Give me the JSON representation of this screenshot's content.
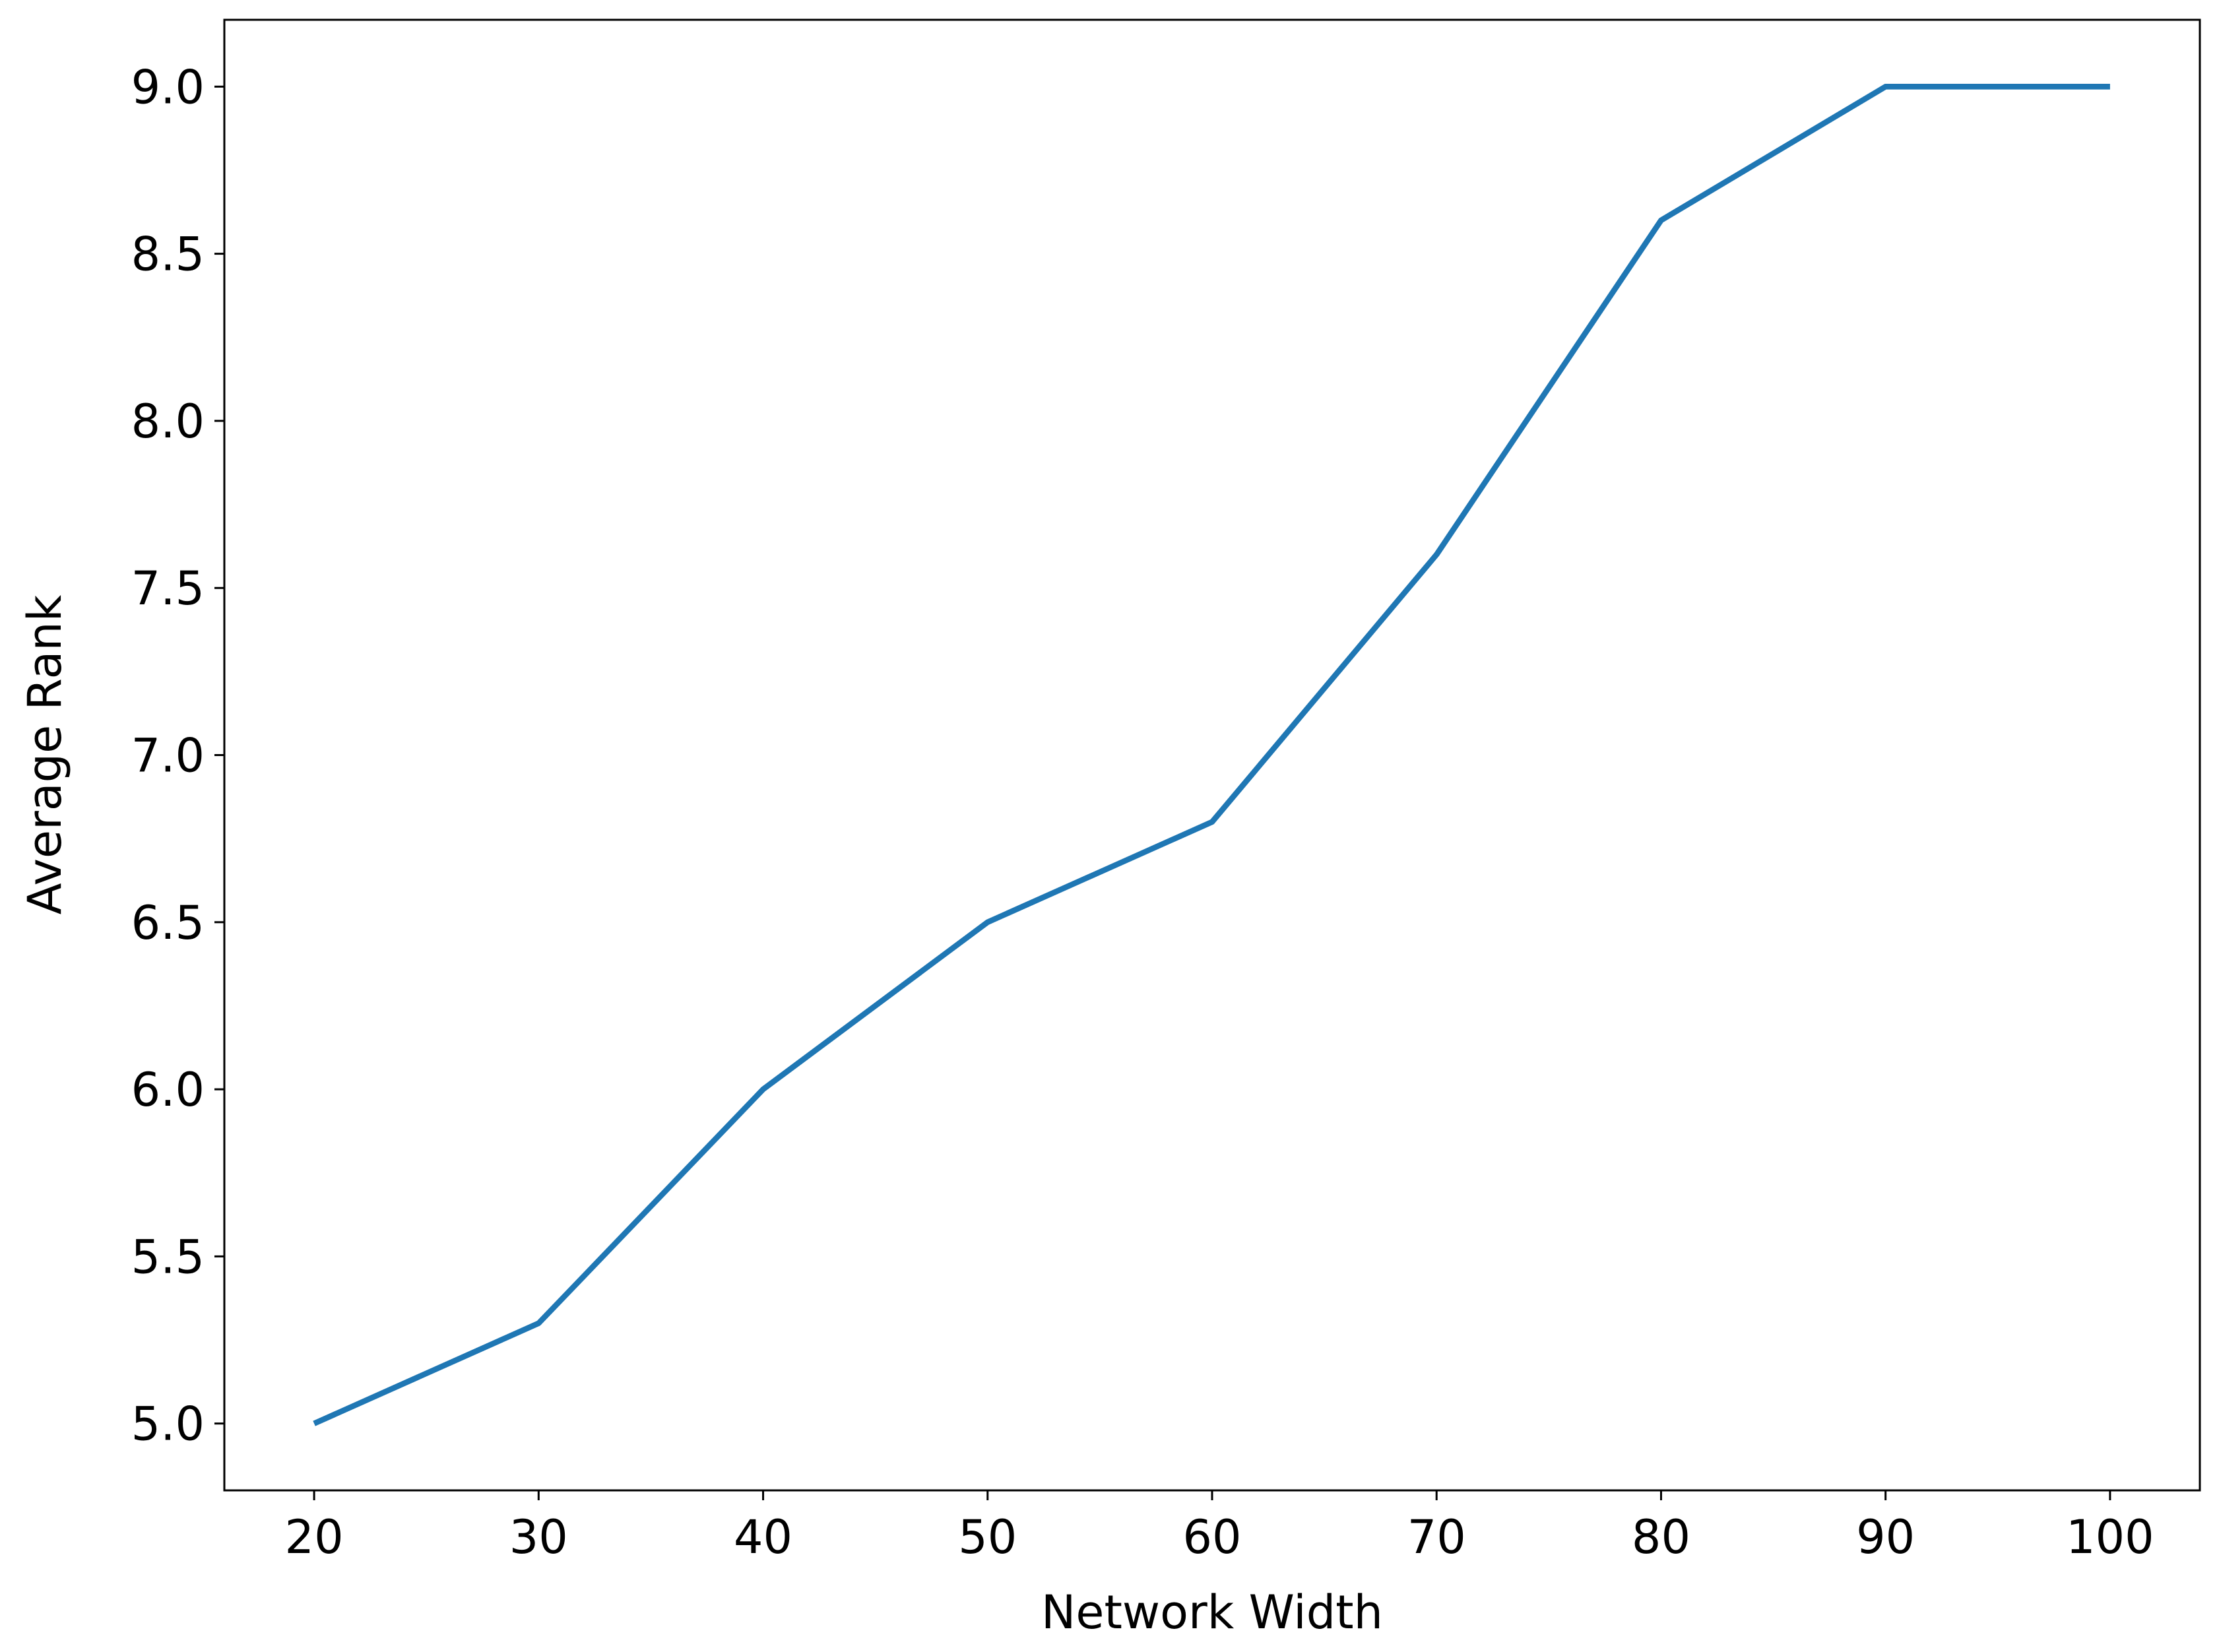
{
  "chart_data": {
    "type": "line",
    "x_label": "Network Width",
    "y_label": "Average Rank",
    "x": [
      20,
      30,
      40,
      50,
      60,
      70,
      80,
      90,
      100
    ],
    "series": [
      {
        "color": "#1f77b4",
        "values": [
          5.0,
          5.3,
          6.0,
          6.5,
          6.8,
          7.6,
          8.6,
          9.0,
          9.0
        ]
      }
    ],
    "xlim": [
      16,
      104
    ],
    "ylim": [
      4.8,
      9.2
    ],
    "xticks": [
      20,
      30,
      40,
      50,
      60,
      70,
      80,
      90,
      100
    ],
    "yticks": [
      {
        "value": 5,
        "label": "5.0"
      },
      5.5,
      {
        "value": 6,
        "label": "6.0"
      },
      6.5,
      {
        "value": 7,
        "label": "7.0"
      },
      7.5,
      {
        "value": 8,
        "label": "8.0"
      },
      8.5,
      {
        "value": 9,
        "label": "9.0"
      }
    ]
  }
}
